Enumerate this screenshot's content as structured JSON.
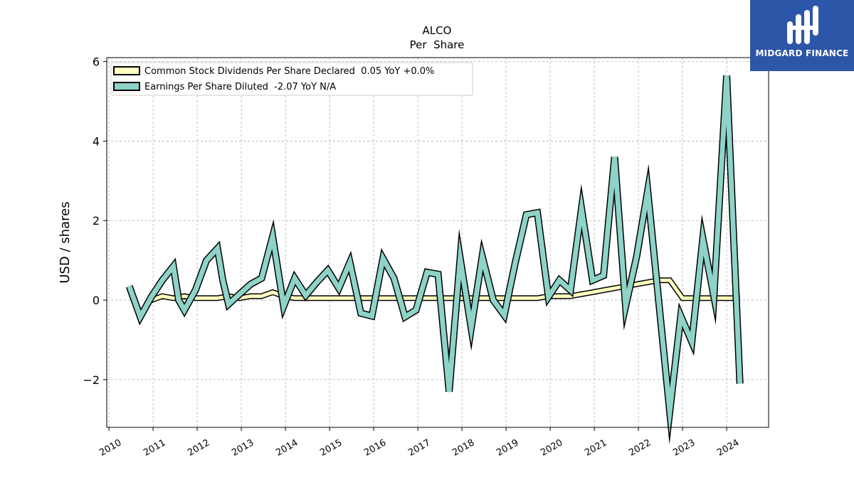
{
  "chart_data": {
    "type": "line",
    "title": "ALCO",
    "subtitle": "Per  Share",
    "ylabel": "USD / shares",
    "xlabel": "",
    "ylim": [
      -3.2,
      6.1
    ],
    "xlim": [
      2009.95,
      2024.95
    ],
    "yticks": [
      -2,
      0,
      2,
      4,
      6
    ],
    "yticklabels": [
      "−2",
      "0",
      "2",
      "4",
      "6"
    ],
    "xticks": [
      "2010",
      "2011",
      "2012",
      "2013",
      "2014",
      "2015",
      "2016",
      "2017",
      "2018",
      "2019",
      "2020",
      "2021",
      "2022",
      "2023",
      "2024"
    ],
    "grid": true,
    "legend_position": "top-left",
    "series": [
      {
        "name": "Common Stock Dividends Per Share Declared  0.05 YoY +0.0%",
        "color": "#ffffbf",
        "x": [
          2010.96,
          2011.21,
          2011.46,
          2011.71,
          2011.96,
          2012.21,
          2012.46,
          2012.71,
          2012.96,
          2013.21,
          2013.46,
          2013.71,
          2013.96,
          2014.21,
          2014.46,
          2014.71,
          2014.96,
          2015.21,
          2015.46,
          2015.71,
          2015.96,
          2016.21,
          2016.46,
          2016.71,
          2016.96,
          2017.21,
          2017.46,
          2017.71,
          2017.96,
          2018.21,
          2018.46,
          2018.71,
          2018.96,
          2019.21,
          2019.46,
          2019.71,
          2019.96,
          2020.21,
          2020.46,
          2020.71,
          2020.96,
          2021.21,
          2021.46,
          2021.71,
          2021.96,
          2022.21,
          2022.46,
          2022.71,
          2023.0,
          2023.25,
          2023.5,
          2023.75,
          2024.0,
          2024.3
        ],
        "values": [
          0.0,
          0.1,
          0.05,
          0.1,
          0.05,
          0.05,
          0.05,
          0.1,
          0.05,
          0.1,
          0.1,
          0.2,
          0.1,
          0.05,
          0.05,
          0.05,
          0.05,
          0.05,
          0.05,
          0.05,
          0.05,
          0.05,
          0.05,
          0.05,
          0.05,
          0.05,
          0.05,
          0.05,
          0.05,
          0.05,
          0.05,
          0.05,
          0.05,
          0.05,
          0.05,
          0.05,
          0.1,
          0.1,
          0.1,
          0.15,
          0.2,
          0.25,
          0.3,
          0.35,
          0.4,
          0.45,
          0.5,
          0.5,
          0.05,
          0.05,
          0.05,
          0.05,
          0.05,
          0.05
        ]
      },
      {
        "name": "Earnings Per Share Diluted  -2.07 YoY N/A",
        "color": "#8dd3c7",
        "x": [
          2010.46,
          2010.71,
          2010.96,
          2011.21,
          2011.46,
          2011.58,
          2011.71,
          2011.96,
          2012.21,
          2012.46,
          2012.58,
          2012.71,
          2012.96,
          2013.21,
          2013.46,
          2013.71,
          2013.96,
          2014.21,
          2014.46,
          2014.71,
          2014.96,
          2015.21,
          2015.46,
          2015.71,
          2015.96,
          2016.21,
          2016.46,
          2016.71,
          2016.96,
          2017.21,
          2017.46,
          2017.71,
          2017.96,
          2018.21,
          2018.46,
          2018.71,
          2018.96,
          2019.21,
          2019.46,
          2019.71,
          2019.96,
          2020.21,
          2020.46,
          2020.71,
          2020.96,
          2021.21,
          2021.46,
          2021.71,
          2021.96,
          2022.21,
          2022.71,
          2022.96,
          2023.21,
          2023.46,
          2023.71,
          2024.0,
          2024.3
        ],
        "values": [
          0.35,
          -0.42,
          0.08,
          0.5,
          0.85,
          0.0,
          -0.25,
          0.25,
          1.0,
          1.3,
          0.5,
          -0.1,
          0.15,
          0.4,
          0.55,
          1.6,
          -0.15,
          0.55,
          0.12,
          0.45,
          0.75,
          0.3,
          0.95,
          -0.33,
          -0.4,
          1.05,
          0.55,
          -0.42,
          -0.25,
          0.7,
          0.65,
          -2.3,
          1.05,
          -0.7,
          1.1,
          0.0,
          -0.38,
          0.95,
          2.15,
          2.2,
          0.08,
          0.5,
          0.25,
          2.3,
          0.5,
          0.62,
          3.6,
          -0.15,
          1.1,
          2.75,
          -2.8,
          -0.4,
          -1.05,
          1.55,
          0.1,
          5.65,
          -2.1
        ]
      }
    ]
  },
  "logo": {
    "text": "MIDGARD FINANCE"
  }
}
